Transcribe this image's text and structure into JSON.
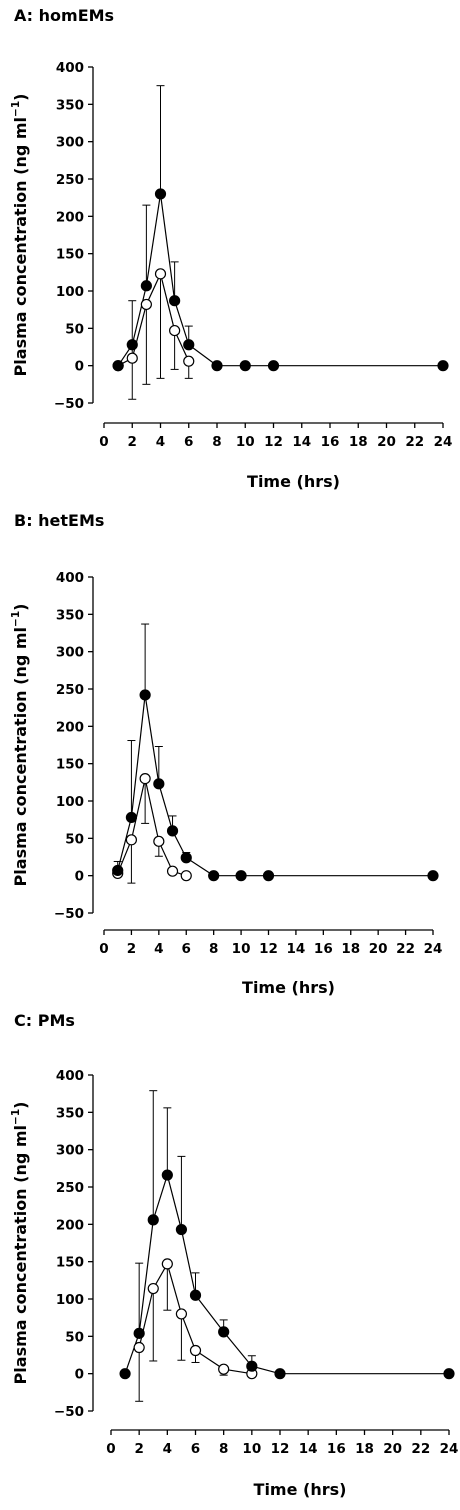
{
  "chart_data": [
    {
      "type": "line",
      "title": "A: homEMs",
      "xlabel": "Time (hrs)",
      "ylabel_main": "Plasma concentration (ng ml",
      "ylabel_sup": "−1",
      "ylabel_close": ")",
      "xlim": [
        0,
        24
      ],
      "ylim": [
        -50,
        400
      ],
      "xticks": [
        0,
        2,
        4,
        6,
        8,
        10,
        12,
        14,
        16,
        18,
        20,
        22,
        24
      ],
      "yticks": [
        -50,
        0,
        50,
        100,
        150,
        200,
        250,
        300,
        350,
        400
      ],
      "series": [
        {
          "marker": "filled",
          "x": [
            1,
            2,
            3,
            4,
            5,
            6,
            8,
            10,
            12,
            24
          ],
          "y": [
            0,
            28,
            107,
            230,
            87,
            28,
            0,
            0,
            0,
            0
          ],
          "err_low": [
            0,
            0,
            0,
            0,
            0,
            0,
            0,
            0,
            0,
            0
          ],
          "err_high": [
            0,
            0,
            108,
            145,
            52,
            25,
            0,
            0,
            0,
            0
          ]
        },
        {
          "marker": "open",
          "x": [
            1,
            2,
            3,
            4,
            5,
            6
          ],
          "y": [
            0,
            10,
            82,
            123,
            47,
            6
          ],
          "err_low": [
            0,
            55,
            107,
            140,
            52,
            23
          ],
          "err_high": [
            0,
            77,
            0,
            0,
            0,
            0
          ]
        }
      ]
    },
    {
      "type": "line",
      "title": "B: hetEMs",
      "xlabel": "Time (hrs)",
      "ylabel_main": "Plasma concentration (ng ml",
      "ylabel_sup": "−1",
      "ylabel_close": ")",
      "xlim": [
        0,
        24
      ],
      "ylim": [
        -50,
        400
      ],
      "xticks": [
        0,
        2,
        4,
        6,
        8,
        10,
        12,
        14,
        16,
        18,
        20,
        22,
        24
      ],
      "yticks": [
        -50,
        0,
        50,
        100,
        150,
        200,
        250,
        300,
        350,
        400
      ],
      "series": [
        {
          "marker": "filled",
          "x": [
            1,
            2,
            3,
            4,
            5,
            6,
            8,
            10,
            12,
            24
          ],
          "y": [
            7,
            78,
            242,
            123,
            60,
            24,
            0,
            0,
            0,
            0
          ],
          "err_low": [
            0,
            0,
            0,
            0,
            0,
            0,
            0,
            0,
            0,
            0
          ],
          "err_high": [
            12,
            103,
            95,
            50,
            20,
            7,
            0,
            0,
            0,
            0
          ]
        },
        {
          "marker": "open",
          "x": [
            1,
            2,
            3,
            4,
            5,
            6
          ],
          "y": [
            3,
            48,
            130,
            46,
            6,
            0
          ],
          "err_low": [
            0,
            58,
            60,
            20,
            0,
            0
          ],
          "err_high": [
            0,
            0,
            0,
            0,
            0,
            0
          ]
        }
      ]
    },
    {
      "type": "line",
      "title": "C: PMs",
      "xlabel": "Time (hrs)",
      "ylabel_main": "Plasma concentration (ng ml",
      "ylabel_sup": "−1",
      "ylabel_close": ")",
      "xlim": [
        0,
        24
      ],
      "ylim": [
        -50,
        400
      ],
      "xticks": [
        0,
        2,
        4,
        6,
        8,
        10,
        12,
        14,
        16,
        18,
        20,
        22,
        24
      ],
      "yticks": [
        -50,
        0,
        50,
        100,
        150,
        200,
        250,
        300,
        350,
        400
      ],
      "series": [
        {
          "marker": "filled",
          "x": [
            1,
            2,
            3,
            4,
            5,
            6,
            8,
            10,
            12,
            24
          ],
          "y": [
            0,
            54,
            206,
            266,
            193,
            105,
            56,
            10,
            0,
            0
          ],
          "err_low": [
            0,
            0,
            0,
            0,
            0,
            0,
            0,
            0,
            0,
            0
          ],
          "err_high": [
            0,
            94,
            173,
            90,
            98,
            30,
            16,
            14,
            0,
            0
          ]
        },
        {
          "marker": "open",
          "x": [
            2,
            3,
            4,
            5,
            6,
            8,
            10
          ],
          "y": [
            35,
            114,
            147,
            80,
            31,
            6,
            0
          ],
          "err_low": [
            72,
            97,
            62,
            62,
            16,
            8,
            0
          ],
          "err_high": [
            0,
            0,
            0,
            0,
            0,
            0,
            0
          ]
        }
      ]
    }
  ]
}
